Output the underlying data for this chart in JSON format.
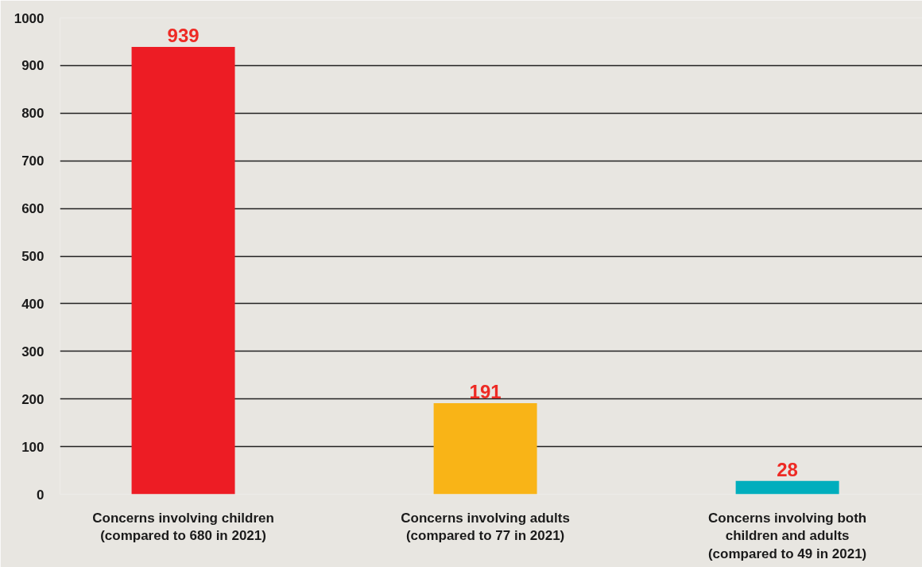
{
  "chart_data": {
    "type": "bar",
    "categories": [
      "Concerns involving children\n(compared to 680 in 2021)",
      "Concerns involving adults\n(compared to 77 in 2021)",
      "Concerns involving both\nchildren and adults\n(compared to 49 in 2021)"
    ],
    "values": [
      939,
      191,
      28
    ],
    "colors": [
      "#ed1c24",
      "#f9b417",
      "#00aebd"
    ],
    "ylim": [
      0,
      1000
    ],
    "yticks": [
      0,
      100,
      200,
      300,
      400,
      500,
      600,
      700,
      800,
      900,
      1000
    ],
    "grid": "y",
    "data_labels": true
  }
}
